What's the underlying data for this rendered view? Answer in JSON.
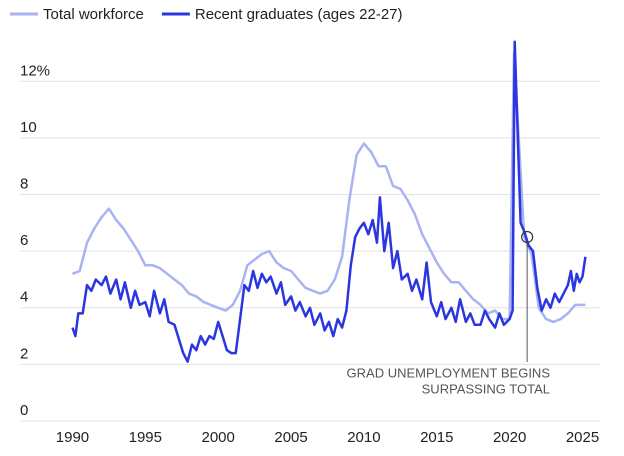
{
  "chart_data": {
    "type": "line",
    "series": [
      {
        "name": "Total workforce",
        "color": "#a9b3f2",
        "x": [
          1990,
          1990.5,
          1991,
          1991.5,
          1992,
          1992.5,
          1993,
          1993.5,
          1994,
          1994.5,
          1995,
          1995.5,
          1996,
          1996.5,
          1997,
          1997.5,
          1998,
          1998.5,
          1999,
          1999.5,
          2000,
          2000.5,
          2001,
          2001.5,
          2002,
          2002.5,
          2003,
          2003.5,
          2004,
          2004.5,
          2005,
          2005.5,
          2006,
          2006.5,
          2007,
          2007.5,
          2008,
          2008.5,
          2009,
          2009.5,
          2010,
          2010.5,
          2011,
          2011.5,
          2012,
          2012.5,
          2013,
          2013.5,
          2014,
          2014.5,
          2015,
          2015.5,
          2016,
          2016.5,
          2017,
          2017.5,
          2018,
          2018.5,
          2019,
          2019.5,
          2020,
          2020.3,
          2020.6,
          2021,
          2021.5,
          2022,
          2022.5,
          2023,
          2023.5,
          2024,
          2024.5,
          2025,
          2025.2
        ],
        "values": [
          5.2,
          5.3,
          6.3,
          6.8,
          7.2,
          7.5,
          7.1,
          6.8,
          6.4,
          6.0,
          5.5,
          5.5,
          5.4,
          5.2,
          5.0,
          4.8,
          4.5,
          4.4,
          4.2,
          4.1,
          4.0,
          3.9,
          4.1,
          4.6,
          5.5,
          5.7,
          5.9,
          6.0,
          5.6,
          5.4,
          5.3,
          5.0,
          4.7,
          4.6,
          4.5,
          4.6,
          5.0,
          5.8,
          7.8,
          9.4,
          9.8,
          9.5,
          9.0,
          9.0,
          8.3,
          8.2,
          7.8,
          7.3,
          6.6,
          6.1,
          5.6,
          5.2,
          4.9,
          4.9,
          4.6,
          4.3,
          4.1,
          3.8,
          3.9,
          3.6,
          3.6,
          13.0,
          10.2,
          6.5,
          5.9,
          4.0,
          3.6,
          3.5,
          3.6,
          3.8,
          4.1,
          4.1,
          4.1
        ]
      },
      {
        "name": "Recent graduates (ages 22-27)",
        "color": "#2b36e0",
        "x": [
          1990,
          1990.2,
          1990.4,
          1990.7,
          1991,
          1991.3,
          1991.6,
          1992,
          1992.3,
          1992.6,
          1993,
          1993.3,
          1993.6,
          1994,
          1994.3,
          1994.6,
          1995,
          1995.3,
          1995.6,
          1996,
          1996.3,
          1996.6,
          1997,
          1997.3,
          1997.6,
          1997.9,
          1998.2,
          1998.5,
          1998.8,
          1999.1,
          1999.4,
          1999.7,
          2000,
          2000.3,
          2000.6,
          2000.9,
          2001.2,
          2001.5,
          2001.8,
          2002.1,
          2002.4,
          2002.7,
          2003,
          2003.3,
          2003.6,
          2004,
          2004.3,
          2004.6,
          2005,
          2005.3,
          2005.6,
          2006,
          2006.3,
          2006.6,
          2007,
          2007.3,
          2007.6,
          2007.9,
          2008.2,
          2008.5,
          2008.8,
          2009.1,
          2009.4,
          2009.7,
          2010,
          2010.3,
          2010.6,
          2010.9,
          2011.1,
          2011.4,
          2011.7,
          2012,
          2012.3,
          2012.6,
          2013,
          2013.3,
          2013.6,
          2014,
          2014.3,
          2014.6,
          2015,
          2015.3,
          2015.6,
          2016,
          2016.3,
          2016.6,
          2017,
          2017.3,
          2017.6,
          2018,
          2018.3,
          2018.6,
          2019,
          2019.3,
          2019.6,
          2020,
          2020.2,
          2020.35,
          2020.5,
          2020.75,
          2021,
          2021.3,
          2021.6,
          2021.9,
          2022.2,
          2022.5,
          2022.8,
          2023.1,
          2023.4,
          2023.7,
          2024,
          2024.2,
          2024.4,
          2024.6,
          2024.8,
          2025,
          2025.2
        ],
        "values": [
          3.3,
          3.0,
          3.8,
          3.8,
          4.8,
          4.6,
          5.0,
          4.8,
          5.1,
          4.5,
          5.0,
          4.3,
          4.9,
          4.0,
          4.6,
          4.1,
          4.2,
          3.7,
          4.6,
          3.8,
          4.3,
          3.5,
          3.4,
          2.9,
          2.4,
          2.1,
          2.7,
          2.5,
          3.0,
          2.7,
          3.0,
          2.9,
          3.5,
          3.0,
          2.5,
          2.4,
          2.4,
          3.6,
          4.8,
          4.6,
          5.3,
          4.7,
          5.2,
          4.9,
          5.1,
          4.5,
          4.9,
          4.1,
          4.4,
          3.9,
          4.2,
          3.7,
          4.0,
          3.4,
          3.8,
          3.2,
          3.5,
          3.0,
          3.6,
          3.3,
          3.9,
          5.5,
          6.5,
          6.8,
          7.0,
          6.6,
          7.1,
          6.3,
          7.9,
          6.0,
          7.0,
          5.4,
          6.0,
          5.0,
          5.2,
          4.6,
          5.0,
          4.3,
          5.6,
          4.2,
          3.7,
          4.2,
          3.6,
          4.0,
          3.5,
          4.3,
          3.5,
          3.8,
          3.4,
          3.4,
          3.9,
          3.6,
          3.3,
          3.8,
          3.4,
          3.6,
          3.9,
          13.4,
          11.0,
          7.0,
          6.7,
          6.2,
          6.0,
          4.7,
          3.9,
          4.3,
          4.0,
          4.5,
          4.2,
          4.5,
          4.8,
          5.3,
          4.6,
          5.2,
          4.9,
          5.1,
          5.8
        ]
      }
    ],
    "xlim": [
      1986.4,
      2026.2
    ],
    "xticks": [
      1990,
      1995,
      2000,
      2005,
      2010,
      2015,
      2020,
      2025
    ],
    "ylim": [
      0,
      13.6
    ],
    "yticks": [
      0,
      2,
      4,
      6,
      8,
      10,
      {
        "value": 12,
        "label": "12%"
      }
    ],
    "grid": true,
    "annotation": {
      "lines": [
        "GRAD UNEMPLOYMENT BEGINS",
        "SURPASSING TOTAL"
      ],
      "x": 2021.2,
      "y": 6.5
    }
  }
}
